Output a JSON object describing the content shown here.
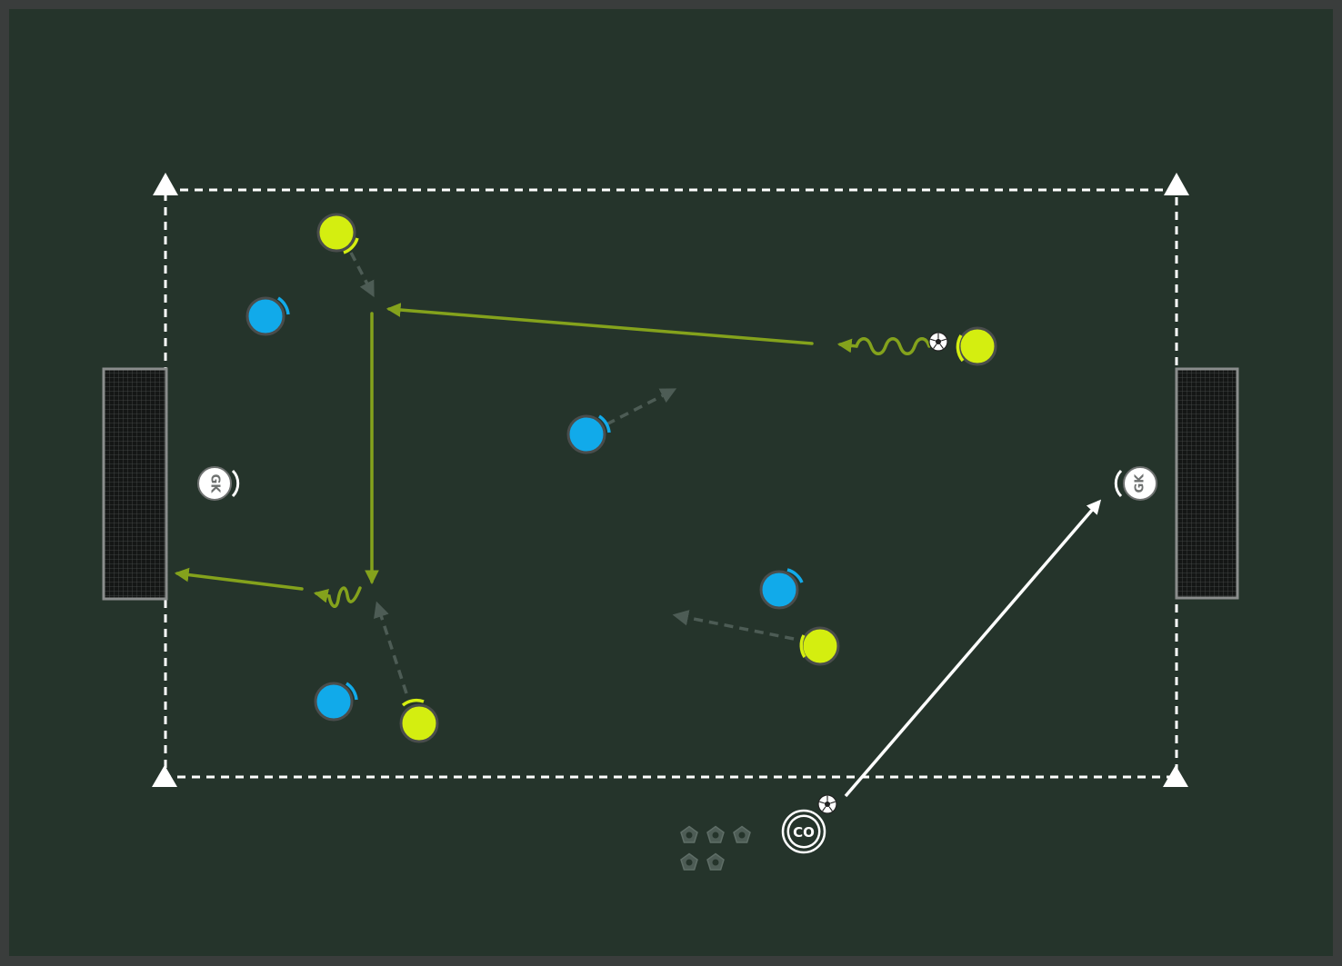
{
  "colors": {
    "frame": "#3a3d3c",
    "pitch": "#25342b",
    "boundary": "#ffffff",
    "team_a": "#d4ee10",
    "team_a_arrow": "#84a21c",
    "team_b": "#11aaea",
    "keeper": "#ffffff",
    "movement_arrow": "#4d5c55",
    "coach_pass": "#ffffff",
    "goal_net": "#141615",
    "goal_post": "#8a8d8c"
  },
  "labels": {
    "goalkeeper": "GK",
    "coach": "CO"
  },
  "icons": {
    "cone": "triangle-cone-icon",
    "ball": "soccer-ball-icon",
    "spare_balls": "ball-stack-icon"
  }
}
